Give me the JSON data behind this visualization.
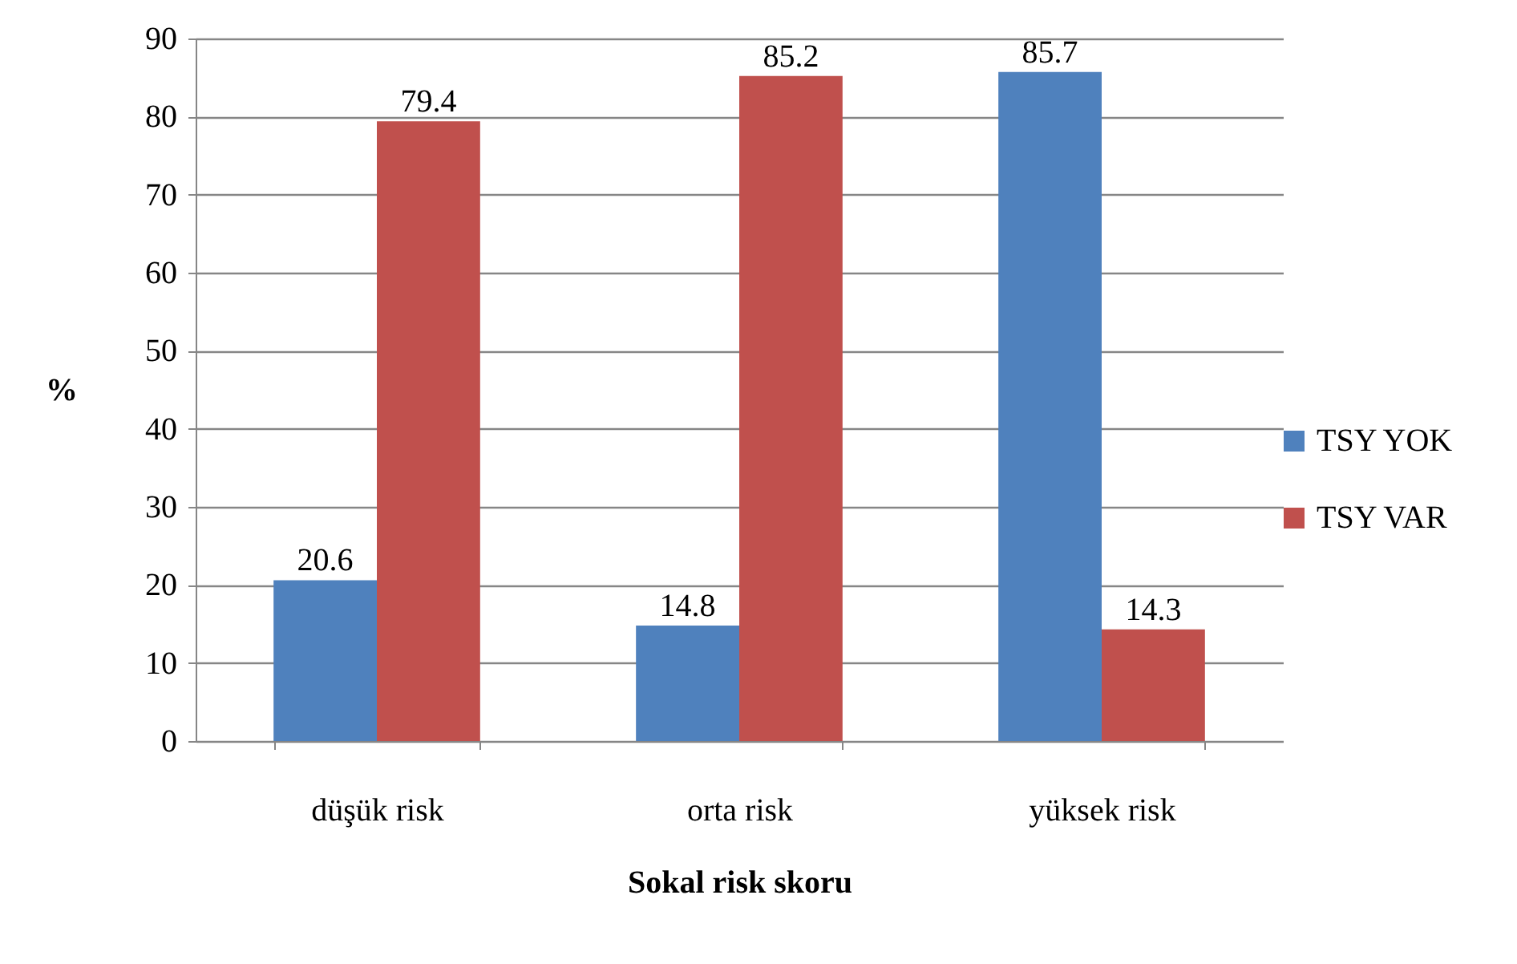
{
  "chart_data": {
    "type": "bar",
    "xlabel": "Sokal risk skoru",
    "ylabel": "%",
    "categories": [
      "düşük risk",
      "orta risk",
      "yüksek risk"
    ],
    "series": [
      {
        "name": "TSY YOK",
        "color": "#4f81bd",
        "values": [
          20.6,
          14.8,
          85.7
        ]
      },
      {
        "name": "TSY VAR",
        "color": "#c0504d",
        "values": [
          79.4,
          85.2,
          14.3
        ]
      }
    ],
    "ylim": [
      0,
      90
    ],
    "yticks": [
      0,
      10,
      20,
      30,
      40,
      50,
      60,
      70,
      80,
      90
    ],
    "grid": "y",
    "legend": "right",
    "data_labels": true
  }
}
